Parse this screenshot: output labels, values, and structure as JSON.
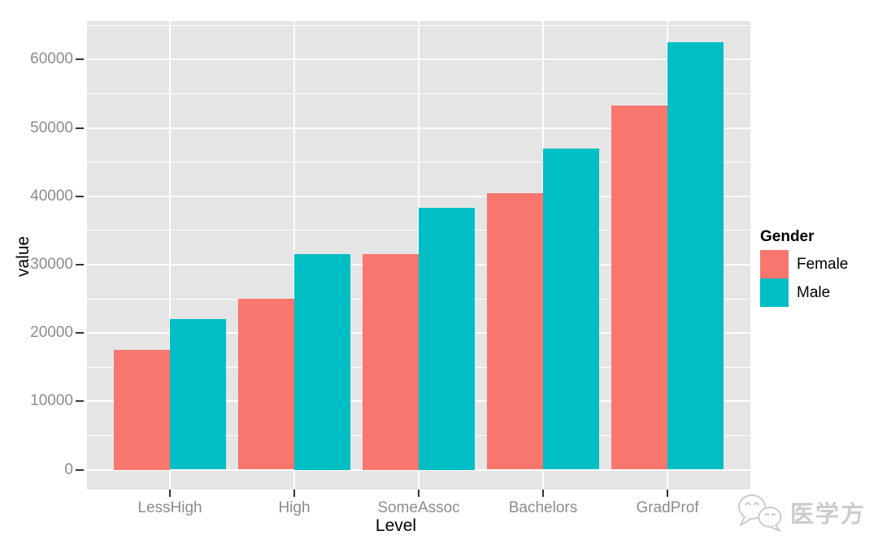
{
  "chart_data": {
    "type": "bar",
    "title": "",
    "xlabel": "Level",
    "ylabel": "value",
    "categories": [
      "LessHigh",
      "High",
      "SomeAssoc",
      "Bachelors",
      "GradProf"
    ],
    "series": [
      {
        "name": "Female",
        "color": "#F8766D",
        "values": [
          17500,
          25000,
          31500,
          40500,
          53300
        ]
      },
      {
        "name": "Male",
        "color": "#00BFC4",
        "values": [
          22000,
          31500,
          38300,
          47000,
          62500
        ]
      }
    ],
    "legend_title": "Gender",
    "legend_position": "right",
    "y_ticks": [
      0,
      10000,
      20000,
      30000,
      40000,
      50000,
      60000
    ],
    "y_minor_step": 5000,
    "ylim": [
      -2910,
      65640
    ],
    "grid": true,
    "bar_group_width": 0.9,
    "colors": {
      "panel_bg": "#E5E5E5",
      "grid": "#FFFFFF",
      "tick_text": "#8c8c8c",
      "axis_text": "#000000",
      "tick_mark": "#333333"
    }
  },
  "watermark": {
    "icon": "wechat-icon",
    "text": "医学方",
    "color": "#cccccc"
  }
}
